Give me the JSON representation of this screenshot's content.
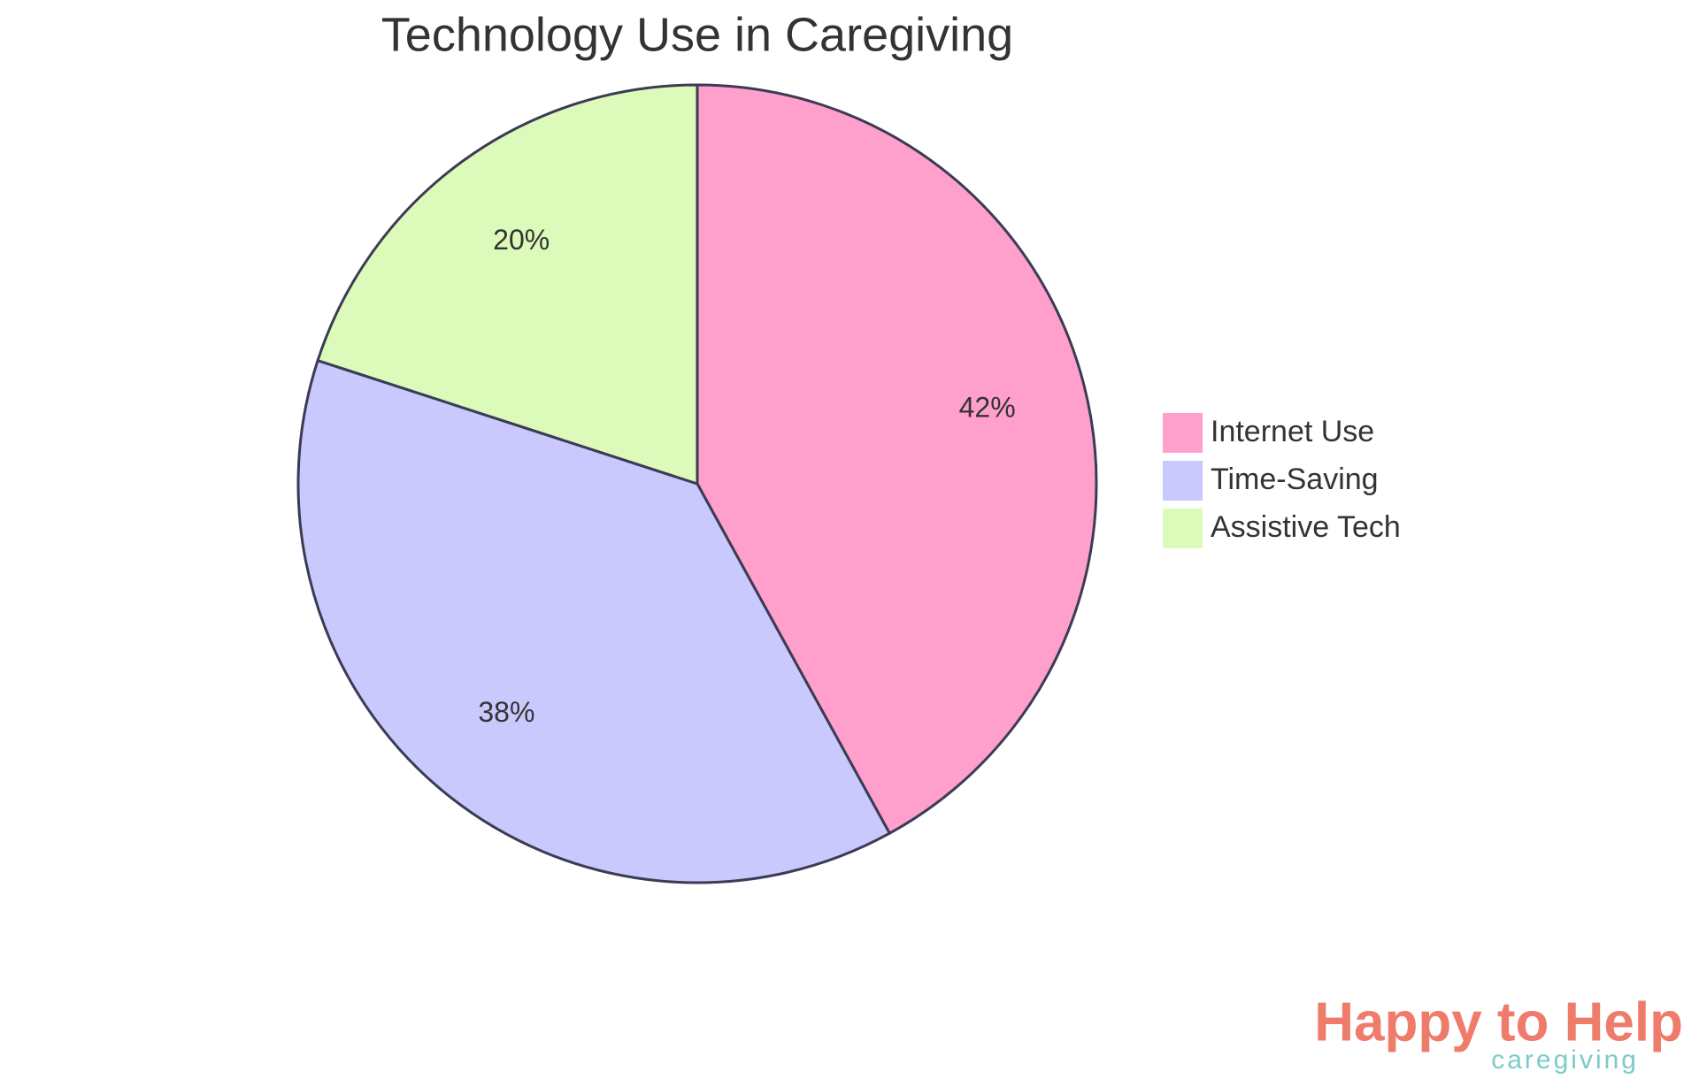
{
  "chart_data": {
    "type": "pie",
    "title": "Technology Use in Caregiving",
    "categories": [
      "Internet Use",
      "Time-Saving",
      "Assistive Tech"
    ],
    "values": [
      42,
      38,
      20
    ],
    "value_labels": [
      "42%",
      "38%",
      "20%"
    ],
    "colors": [
      "#fea0cb",
      "#c9c9fd",
      "#dcfab9"
    ],
    "legend": "right"
  },
  "logo": {
    "name": "Happy to Help",
    "tagline": "caregiving"
  }
}
